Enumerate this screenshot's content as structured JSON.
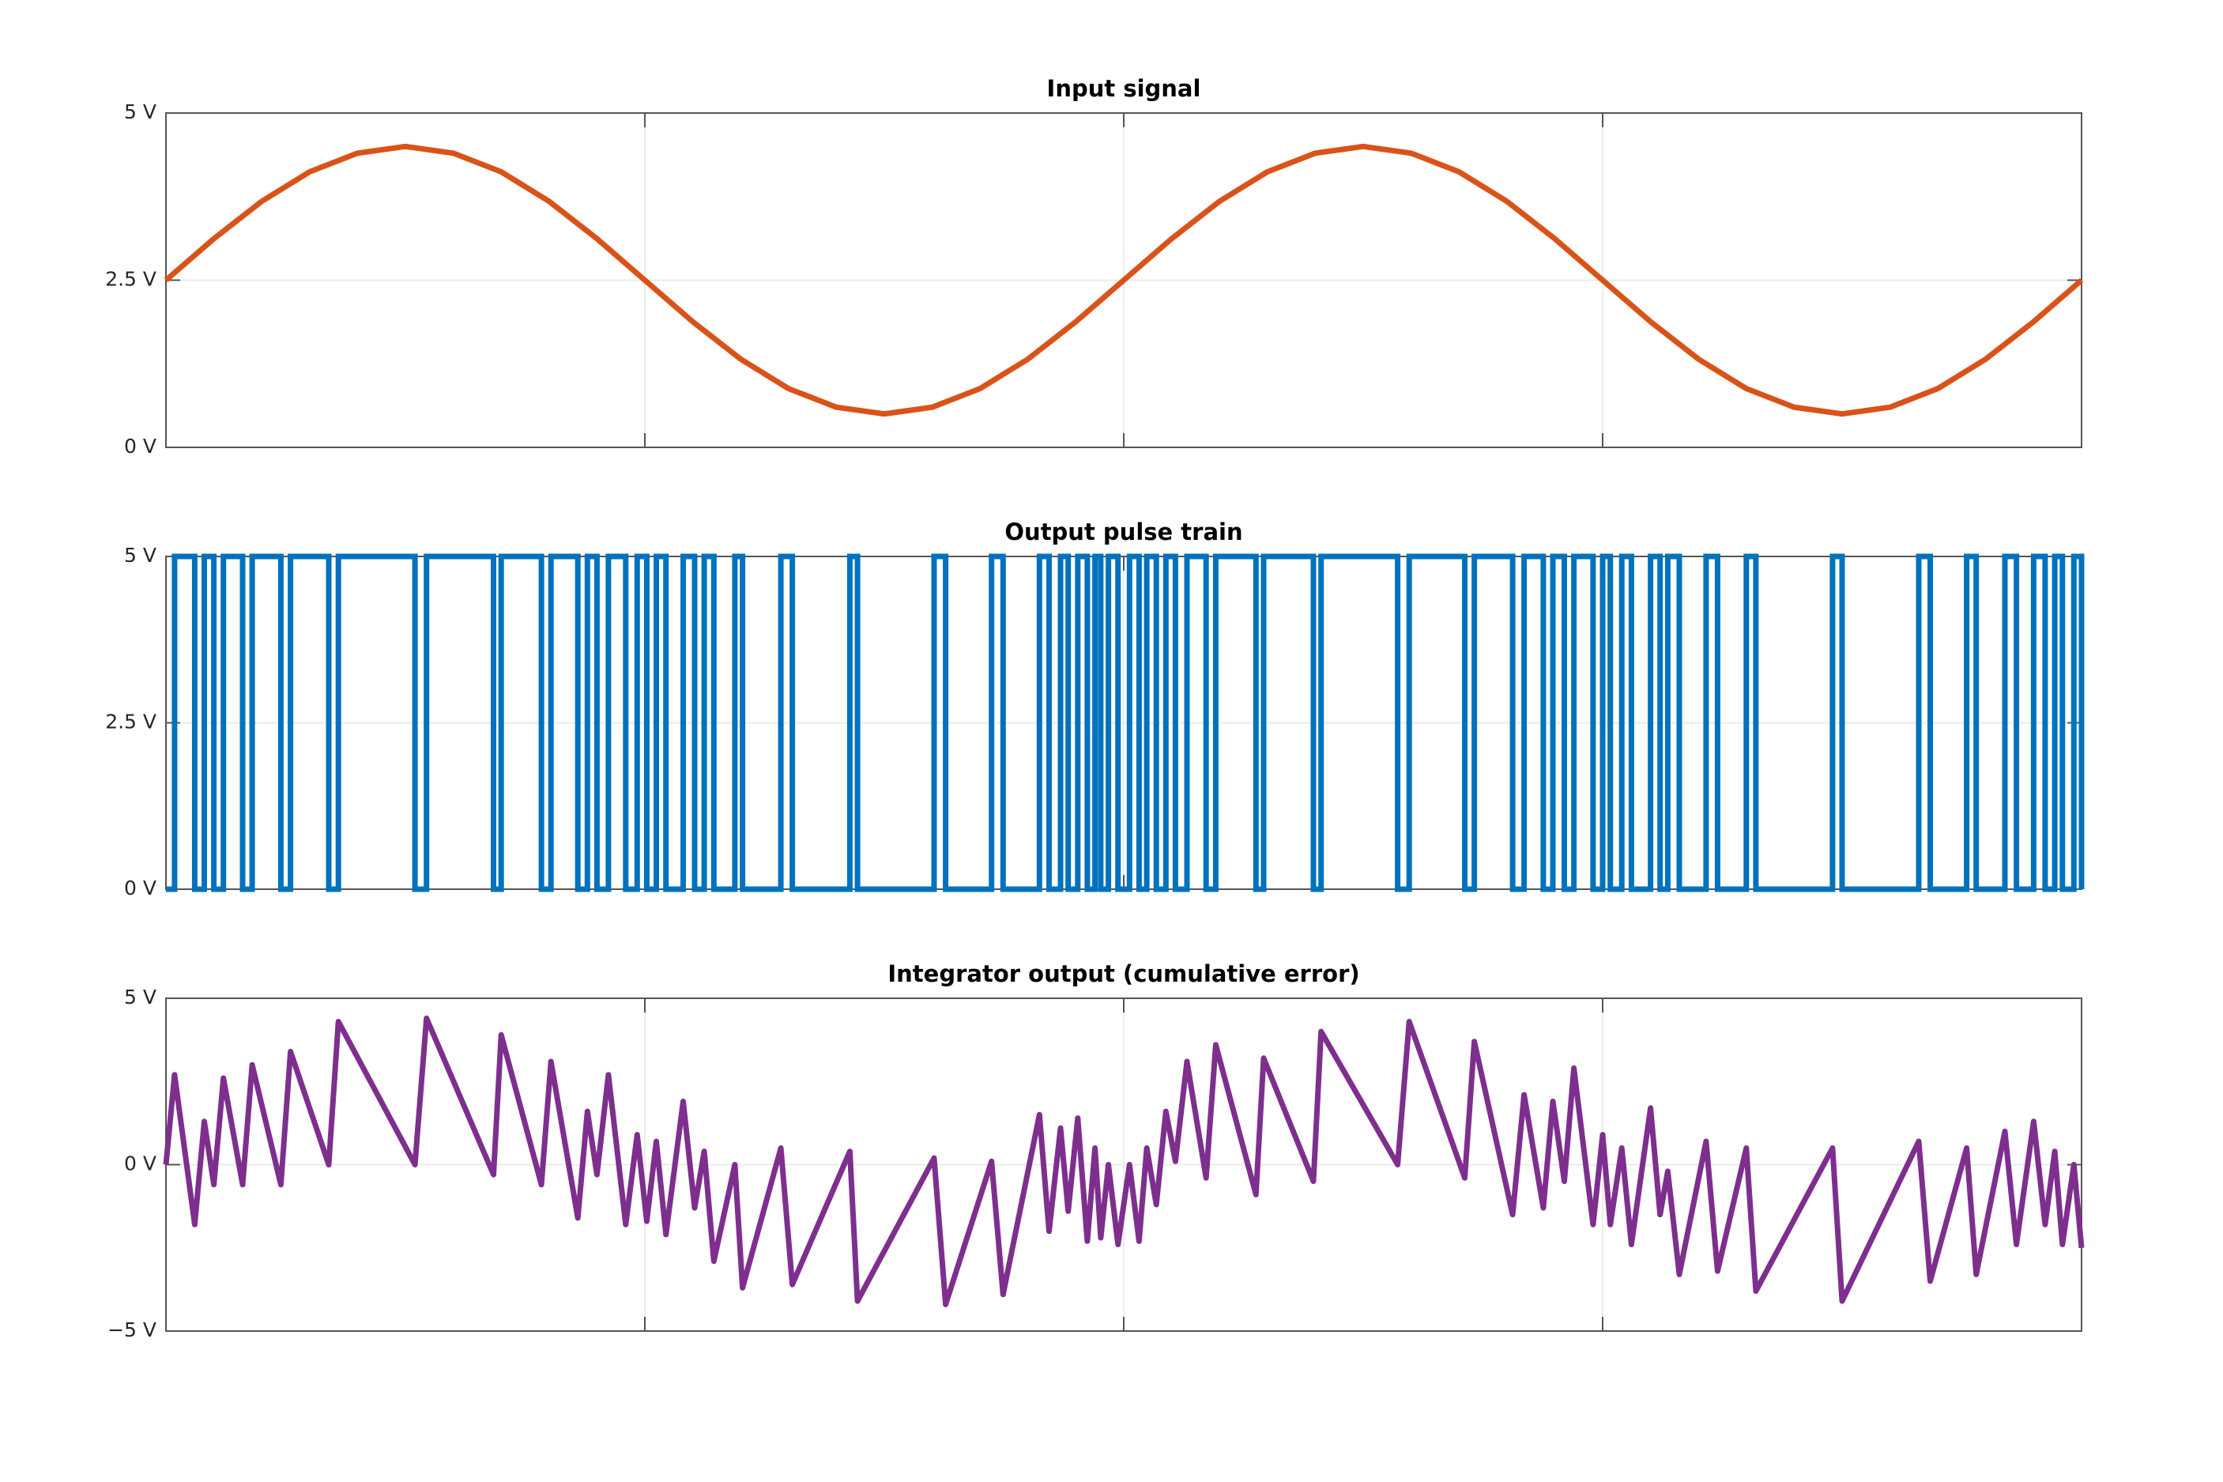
{
  "chart_data": [
    {
      "type": "line",
      "title": "Input signal",
      "color": "#d95319",
      "grid": true,
      "xlim": [
        0,
        100
      ],
      "xticks": [
        0,
        25,
        50,
        75,
        100
      ],
      "ylim": [
        0,
        5
      ],
      "yticks": [
        {
          "value": 0,
          "label": "0 V"
        },
        {
          "value": 2.5,
          "label": "2.5 V"
        },
        {
          "value": 5,
          "label": "5 V"
        }
      ],
      "x": [
        0,
        2.5,
        5,
        7.5,
        10,
        12.5,
        15,
        17.5,
        20,
        22.5,
        25,
        27.5,
        30,
        32.5,
        35,
        37.5,
        40,
        42.5,
        45,
        47.5,
        50,
        52.5,
        55,
        57.5,
        60,
        62.5,
        65,
        67.5,
        70,
        72.5,
        75,
        77.5,
        80,
        82.5,
        85,
        87.5,
        90,
        92.5,
        95,
        97.5,
        100
      ],
      "values": [
        2.5,
        3.12,
        3.68,
        4.12,
        4.4,
        4.5,
        4.4,
        4.12,
        3.68,
        3.12,
        2.5,
        1.88,
        1.32,
        0.88,
        0.6,
        0.5,
        0.6,
        0.88,
        1.32,
        1.88,
        2.5,
        3.12,
        3.68,
        4.12,
        4.4,
        4.5,
        4.4,
        4.12,
        3.68,
        3.12,
        2.5,
        1.88,
        1.32,
        0.88,
        0.6,
        0.5,
        0.6,
        0.88,
        1.32,
        1.88,
        2.5
      ]
    },
    {
      "type": "step",
      "title": "Output pulse train",
      "color": "#0072bd",
      "grid": true,
      "xlim": [
        0,
        100
      ],
      "xticks": [
        0,
        25,
        50,
        75,
        100
      ],
      "ylim": [
        0,
        5
      ],
      "yticks": [
        {
          "value": 0,
          "label": "0 V"
        },
        {
          "value": 2.5,
          "label": "2.5 V"
        },
        {
          "value": 5,
          "label": "5 V"
        }
      ],
      "x": [
        0,
        0.45,
        1.5,
        2.0,
        2.5,
        3.0,
        4.0,
        4.5,
        6.0,
        6.5,
        8.5,
        9.0,
        13.0,
        13.6,
        17.1,
        17.5,
        19.6,
        20.1,
        21.5,
        22.0,
        22.5,
        23.1,
        24.0,
        24.6,
        25.1,
        25.6,
        26.1,
        27.0,
        27.6,
        28.1,
        28.6,
        29.7,
        30.1,
        32.1,
        32.7,
        35.7,
        36.1,
        40.1,
        40.7,
        43.1,
        43.7,
        45.6,
        46.1,
        46.7,
        47.1,
        47.6,
        48.1,
        48.5,
        48.8,
        49.2,
        49.7,
        50.3,
        50.8,
        51.2,
        51.7,
        52.2,
        52.7,
        53.3,
        54.3,
        54.8,
        56.9,
        57.3,
        59.9,
        60.3,
        64.3,
        64.9,
        67.8,
        68.3,
        70.3,
        70.9,
        71.9,
        72.4,
        73.0,
        73.5,
        74.5,
        75.0,
        75.4,
        76.0,
        76.5,
        77.5,
        78.0,
        78.4,
        79.0,
        80.4,
        81.0,
        82.5,
        83.0,
        87.0,
        87.5,
        91.5,
        92.1,
        94.0,
        94.5,
        96.0,
        96.6,
        97.5,
        98.1,
        98.6,
        99.0,
        99.6,
        100
      ],
      "values": [
        0,
        5,
        0,
        5,
        0,
        5,
        0,
        5,
        0,
        5,
        0,
        5,
        0,
        5,
        0,
        5,
        0,
        5,
        0,
        5,
        0,
        5,
        0,
        5,
        0,
        5,
        0,
        5,
        0,
        5,
        0,
        5,
        0,
        5,
        0,
        5,
        0,
        5,
        0,
        5,
        0,
        5,
        0,
        5,
        0,
        5,
        0,
        5,
        0,
        5,
        0,
        5,
        0,
        5,
        0,
        5,
        0,
        5,
        0,
        5,
        0,
        5,
        0,
        5,
        0,
        5,
        0,
        5,
        0,
        5,
        0,
        5,
        0,
        5,
        0,
        5,
        0,
        5,
        0,
        5,
        0,
        5,
        0,
        5,
        0,
        5,
        0,
        5,
        0,
        5,
        0,
        5,
        0,
        5,
        0,
        5,
        0,
        5,
        0,
        5,
        0
      ]
    },
    {
      "type": "line",
      "title": "Integrator output (cumulative error)",
      "color": "#7e2f8e",
      "grid": true,
      "xlim": [
        0,
        100
      ],
      "xticks": [
        0,
        25,
        50,
        75,
        100
      ],
      "ylim": [
        -5,
        5
      ],
      "yticks": [
        {
          "value": -5,
          "label": "−5 V"
        },
        {
          "value": 0,
          "label": "0 V"
        },
        {
          "value": 5,
          "label": "5 V"
        }
      ],
      "x": [
        0,
        0.45,
        1.5,
        2.0,
        2.5,
        3.0,
        4.0,
        4.5,
        6.0,
        6.5,
        8.5,
        9.0,
        13.0,
        13.6,
        17.1,
        17.5,
        19.6,
        20.1,
        21.5,
        22.0,
        22.5,
        23.1,
        24.0,
        24.6,
        25.1,
        25.6,
        26.1,
        27.0,
        27.6,
        28.1,
        28.6,
        29.7,
        30.1,
        32.1,
        32.7,
        35.7,
        36.1,
        40.1,
        40.7,
        43.1,
        43.7,
        45.6,
        46.1,
        46.7,
        47.1,
        47.6,
        48.1,
        48.5,
        48.8,
        49.2,
        49.7,
        50.3,
        50.8,
        51.2,
        51.7,
        52.2,
        52.7,
        53.3,
        54.3,
        54.8,
        56.9,
        57.3,
        59.9,
        60.3,
        64.3,
        64.9,
        67.8,
        68.3,
        70.3,
        70.9,
        71.9,
        72.4,
        73.0,
        73.5,
        74.5,
        75.0,
        75.4,
        76.0,
        76.5,
        77.5,
        78.0,
        78.4,
        79.0,
        80.4,
        81.0,
        82.5,
        83.0,
        87.0,
        87.5,
        91.5,
        92.1,
        94.0,
        94.5,
        96.0,
        96.6,
        97.5,
        98.1,
        98.6,
        99.0,
        99.6,
        100
      ],
      "values": [
        0,
        2.7,
        -1.8,
        1.3,
        -0.6,
        2.6,
        -0.6,
        3.0,
        -0.6,
        3.4,
        0.0,
        4.3,
        0.0,
        4.4,
        -0.3,
        3.9,
        -0.6,
        3.1,
        -1.6,
        1.6,
        -0.3,
        2.7,
        -1.8,
        0.9,
        -1.7,
        0.7,
        -2.1,
        1.9,
        -1.3,
        0.4,
        -2.9,
        0.0,
        -3.7,
        0.5,
        -3.6,
        0.4,
        -4.1,
        0.2,
        -4.2,
        0.1,
        -3.9,
        1.5,
        -2.0,
        1.1,
        -1.4,
        1.4,
        -2.3,
        0.5,
        -2.2,
        0.0,
        -2.4,
        0.0,
        -2.3,
        0.5,
        -1.2,
        1.6,
        0.1,
        3.1,
        -0.4,
        3.6,
        -0.9,
        3.2,
        -0.5,
        4.0,
        0.0,
        4.3,
        -0.4,
        3.7,
        -1.5,
        2.1,
        -1.3,
        1.9,
        -0.5,
        2.9,
        -1.8,
        0.9,
        -1.8,
        0.5,
        -2.4,
        1.7,
        -1.5,
        -0.2,
        -3.3,
        0.7,
        -3.2,
        0.5,
        -3.8,
        0.5,
        -4.1,
        0.7,
        -3.5,
        0.5,
        -3.3,
        1.0,
        -2.4,
        1.3,
        -1.8,
        0.4,
        -2.4,
        0.0,
        -2.5
      ]
    }
  ]
}
